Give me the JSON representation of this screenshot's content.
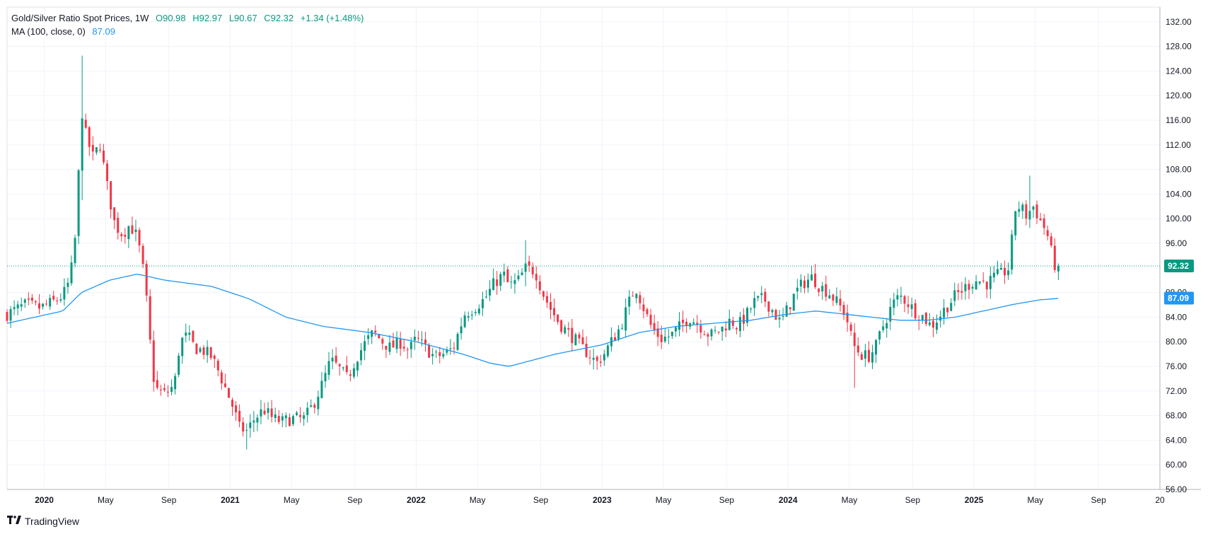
{
  "legend": {
    "title": "Gold/Silver Ratio Spot Prices, 1W",
    "open": "O90.98",
    "high": "H92.97",
    "low": "L90.67",
    "close": "C92.32",
    "change": "+1.34 (+1.48%)",
    "ma_label": "MA (100, close, 0)",
    "ma_value": "87.09"
  },
  "brand": "TradingView",
  "colors": {
    "up": "#089981",
    "down": "#f23645",
    "ma": "#2196f3",
    "grid": "#f0f3fa",
    "text": "#131722",
    "last_price": "#089981"
  },
  "chart_data": {
    "type": "candlestick",
    "title": "Gold/Silver Ratio Spot Prices, 1W",
    "interval": "1W",
    "y_ticks": [
      "132.00",
      "128.00",
      "124.00",
      "120.00",
      "116.00",
      "112.00",
      "108.00",
      "104.00",
      "100.00",
      "96.00",
      "92.00",
      "88.00",
      "84.00",
      "80.00",
      "76.00",
      "72.00",
      "68.00",
      "64.00",
      "60.00",
      "56.00"
    ],
    "ylim": [
      56,
      133
    ],
    "x_ticks": [
      {
        "label": "2020",
        "t": 2020.0,
        "bold": true
      },
      {
        "label": "May",
        "t": 2020.33,
        "bold": false
      },
      {
        "label": "Sep",
        "t": 2020.67,
        "bold": false
      },
      {
        "label": "2021",
        "t": 2021.0,
        "bold": true
      },
      {
        "label": "May",
        "t": 2021.33,
        "bold": false
      },
      {
        "label": "Sep",
        "t": 2021.67,
        "bold": false
      },
      {
        "label": "2022",
        "t": 2022.0,
        "bold": true
      },
      {
        "label": "May",
        "t": 2022.33,
        "bold": false
      },
      {
        "label": "Sep",
        "t": 2022.67,
        "bold": false
      },
      {
        "label": "2023",
        "t": 2023.0,
        "bold": true
      },
      {
        "label": "May",
        "t": 2023.33,
        "bold": false
      },
      {
        "label": "Sep",
        "t": 2023.67,
        "bold": false
      },
      {
        "label": "2024",
        "t": 2024.0,
        "bold": true
      },
      {
        "label": "May",
        "t": 2024.33,
        "bold": false
      },
      {
        "label": "Sep",
        "t": 2024.67,
        "bold": false
      },
      {
        "label": "2025",
        "t": 2025.0,
        "bold": true
      },
      {
        "label": "May",
        "t": 2025.33,
        "bold": false
      },
      {
        "label": "Sep",
        "t": 2025.67,
        "bold": false
      },
      {
        "label": "20",
        "t": 2026.0,
        "bold": false
      }
    ],
    "x_range": [
      2019.8,
      2026.0
    ],
    "close_anchors": [
      [
        2019.8,
        84.5
      ],
      [
        2019.9,
        86.0
      ],
      [
        2019.98,
        85.5
      ],
      [
        2020.05,
        86.5
      ],
      [
        2020.1,
        87.5
      ],
      [
        2020.13,
        89.5
      ],
      [
        2020.16,
        94.0
      ],
      [
        2020.18,
        104.0
      ],
      [
        2020.2,
        118.0
      ],
      [
        2020.22,
        114.0
      ],
      [
        2020.26,
        110.0
      ],
      [
        2020.3,
        112.0
      ],
      [
        2020.34,
        105.0
      ],
      [
        2020.38,
        99.0
      ],
      [
        2020.42,
        97.5
      ],
      [
        2020.46,
        99.0
      ],
      [
        2020.5,
        97.0
      ],
      [
        2020.53,
        92.0
      ],
      [
        2020.56,
        84.0
      ],
      [
        2020.58,
        75.0
      ],
      [
        2020.61,
        72.0
      ],
      [
        2020.65,
        71.5
      ],
      [
        2020.7,
        73.0
      ],
      [
        2020.73,
        80.0
      ],
      [
        2020.77,
        81.0
      ],
      [
        2020.81,
        79.0
      ],
      [
        2020.86,
        78.5
      ],
      [
        2020.9,
        77.5
      ],
      [
        2020.94,
        75.0
      ],
      [
        2020.98,
        72.0
      ],
      [
        2021.02,
        69.0
      ],
      [
        2021.05,
        66.0
      ],
      [
        2021.09,
        65.5
      ],
      [
        2021.13,
        67.5
      ],
      [
        2021.18,
        69.0
      ],
      [
        2021.23,
        67.5
      ],
      [
        2021.28,
        67.0
      ],
      [
        2021.33,
        67.5
      ],
      [
        2021.4,
        67.5
      ],
      [
        2021.45,
        70.0
      ],
      [
        2021.5,
        73.5
      ],
      [
        2021.54,
        77.0
      ],
      [
        2021.59,
        75.5
      ],
      [
        2021.63,
        74.0
      ],
      [
        2021.68,
        77.5
      ],
      [
        2021.73,
        80.0
      ],
      [
        2021.77,
        81.5
      ],
      [
        2021.82,
        80.0
      ],
      [
        2021.86,
        79.0
      ],
      [
        2021.92,
        80.0
      ],
      [
        2021.96,
        78.5
      ],
      [
        2022.0,
        80.5
      ],
      [
        2022.05,
        79.0
      ],
      [
        2022.1,
        77.5
      ],
      [
        2022.15,
        78.0
      ],
      [
        2022.2,
        79.0
      ],
      [
        2022.26,
        84.5
      ],
      [
        2022.31,
        85.5
      ],
      [
        2022.37,
        87.0
      ],
      [
        2022.42,
        89.5
      ],
      [
        2022.47,
        91.0
      ],
      [
        2022.5,
        89.0
      ],
      [
        2022.55,
        90.0
      ],
      [
        2022.59,
        92.0
      ],
      [
        2022.64,
        91.5
      ],
      [
        2022.68,
        88.0
      ],
      [
        2022.72,
        85.5
      ],
      [
        2022.77,
        83.0
      ],
      [
        2022.8,
        82.0
      ],
      [
        2022.85,
        80.5
      ],
      [
        2022.89,
        79.0
      ],
      [
        2022.93,
        78.0
      ],
      [
        2022.97,
        76.5
      ],
      [
        2023.01,
        78.0
      ],
      [
        2023.05,
        80.0
      ],
      [
        2023.1,
        82.5
      ],
      [
        2023.14,
        86.0
      ],
      [
        2023.18,
        89.0
      ],
      [
        2023.23,
        85.0
      ],
      [
        2023.27,
        82.0
      ],
      [
        2023.32,
        80.5
      ],
      [
        2023.37,
        81.0
      ],
      [
        2023.42,
        82.5
      ],
      [
        2023.47,
        84.0
      ],
      [
        2023.53,
        82.5
      ],
      [
        2023.58,
        81.0
      ],
      [
        2023.64,
        82.0
      ],
      [
        2023.69,
        83.5
      ],
      [
        2023.73,
        82.5
      ],
      [
        2023.78,
        84.5
      ],
      [
        2023.82,
        86.5
      ],
      [
        2023.87,
        87.0
      ],
      [
        2023.92,
        85.0
      ],
      [
        2023.96,
        83.0
      ],
      [
        2024.0,
        85.5
      ],
      [
        2024.04,
        88.0
      ],
      [
        2024.08,
        89.5
      ],
      [
        2024.13,
        90.5
      ],
      [
        2024.17,
        89.0
      ],
      [
        2024.22,
        88.0
      ],
      [
        2024.26,
        86.5
      ],
      [
        2024.31,
        84.5
      ],
      [
        2024.35,
        79.5
      ],
      [
        2024.39,
        78.0
      ],
      [
        2024.43,
        77.5
      ],
      [
        2024.47,
        79.0
      ],
      [
        2024.51,
        82.5
      ],
      [
        2024.56,
        86.0
      ],
      [
        2024.6,
        87.5
      ],
      [
        2024.64,
        86.5
      ],
      [
        2024.68,
        85.0
      ],
      [
        2024.73,
        84.0
      ],
      [
        2024.77,
        82.5
      ],
      [
        2024.81,
        84.0
      ],
      [
        2024.86,
        86.0
      ],
      [
        2024.9,
        87.5
      ],
      [
        2024.94,
        88.5
      ],
      [
        2024.98,
        89.5
      ],
      [
        2025.02,
        90.0
      ],
      [
        2025.07,
        89.5
      ],
      [
        2025.11,
        90.5
      ],
      [
        2025.15,
        91.0
      ],
      [
        2025.19,
        92.0
      ],
      [
        2025.22,
        101.5
      ],
      [
        2025.25,
        102.0
      ],
      [
        2025.28,
        100.5
      ],
      [
        2025.32,
        102.0
      ],
      [
        2025.36,
        99.5
      ],
      [
        2025.39,
        98.0
      ],
      [
        2025.42,
        94.0
      ],
      [
        2025.45,
        91.0
      ],
      [
        2025.47,
        92.32
      ]
    ],
    "ma": {
      "label": "MA (100, close, 0)",
      "last": 87.09,
      "anchors": [
        [
          2019.8,
          83.0
        ],
        [
          2019.95,
          84.0
        ],
        [
          2020.1,
          85.0
        ],
        [
          2020.2,
          88.0
        ],
        [
          2020.35,
          90.0
        ],
        [
          2020.5,
          91.0
        ],
        [
          2020.65,
          90.0
        ],
        [
          2020.9,
          89.0
        ],
        [
          2021.1,
          87.0
        ],
        [
          2021.3,
          84.0
        ],
        [
          2021.5,
          82.5
        ],
        [
          2021.75,
          81.5
        ],
        [
          2022.0,
          80.0
        ],
        [
          2022.25,
          78.0
        ],
        [
          2022.4,
          76.5
        ],
        [
          2022.5,
          76.0
        ],
        [
          2022.6,
          76.8
        ],
        [
          2022.75,
          78.0
        ],
        [
          2023.0,
          79.5
        ],
        [
          2023.2,
          81.5
        ],
        [
          2023.4,
          82.5
        ],
        [
          2023.6,
          83.0
        ],
        [
          2023.8,
          83.5
        ],
        [
          2024.0,
          84.5
        ],
        [
          2024.15,
          85.0
        ],
        [
          2024.3,
          84.5
        ],
        [
          2024.45,
          84.0
        ],
        [
          2024.6,
          83.5
        ],
        [
          2024.75,
          83.5
        ],
        [
          2024.9,
          84.0
        ],
        [
          2025.05,
          85.0
        ],
        [
          2025.2,
          86.0
        ],
        [
          2025.35,
          86.8
        ],
        [
          2025.47,
          87.09
        ]
      ]
    },
    "spikes": [
      {
        "t": 2020.2,
        "high": 126.5,
        "low": 103.0
      },
      {
        "t": 2021.09,
        "high": 66.0,
        "low": 62.5
      },
      {
        "t": 2022.59,
        "high": 96.5,
        "low": 89.0
      },
      {
        "t": 2024.35,
        "high": 83.0,
        "low": 72.5
      },
      {
        "t": 2025.3,
        "high": 107.0,
        "low": 98.5
      }
    ],
    "last_price": 92.32,
    "last_price_label": "92.32",
    "ma_label_value": "87.09"
  }
}
